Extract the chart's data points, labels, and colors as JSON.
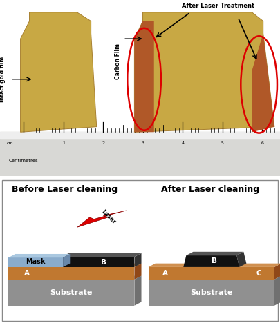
{
  "fig_width": 4.05,
  "fig_height": 4.68,
  "dpi": 100,
  "bg_color": "#ffffff",
  "photo_bg": "#b8b8b8",
  "before_title": "Before Laser cleaning",
  "after_title": "After Laser cleaning",
  "substrate_label": "Substrate",
  "mask_label": "Mask",
  "laser_label": "Laser",
  "label_A": "A",
  "label_B": "B",
  "label_C": "C",
  "label_intact": "Intact gold film",
  "label_carbon": "Carbon Film",
  "label_after": "After Laser Treatment",
  "title_fontsize": 9,
  "substrate_color": "#c07830",
  "base_color": "#909090",
  "base_dark": "#707070",
  "mask_color": "#8aaccc",
  "mask_dark": "#6888aa",
  "carbon_color": "#111111",
  "carbon_dark": "#333333",
  "laser_color": "#dd0000",
  "gold_color": "#c8a844",
  "gold_dark": "#a88030",
  "ellipse_color": "#dd0000",
  "copper_color": "#b05828"
}
